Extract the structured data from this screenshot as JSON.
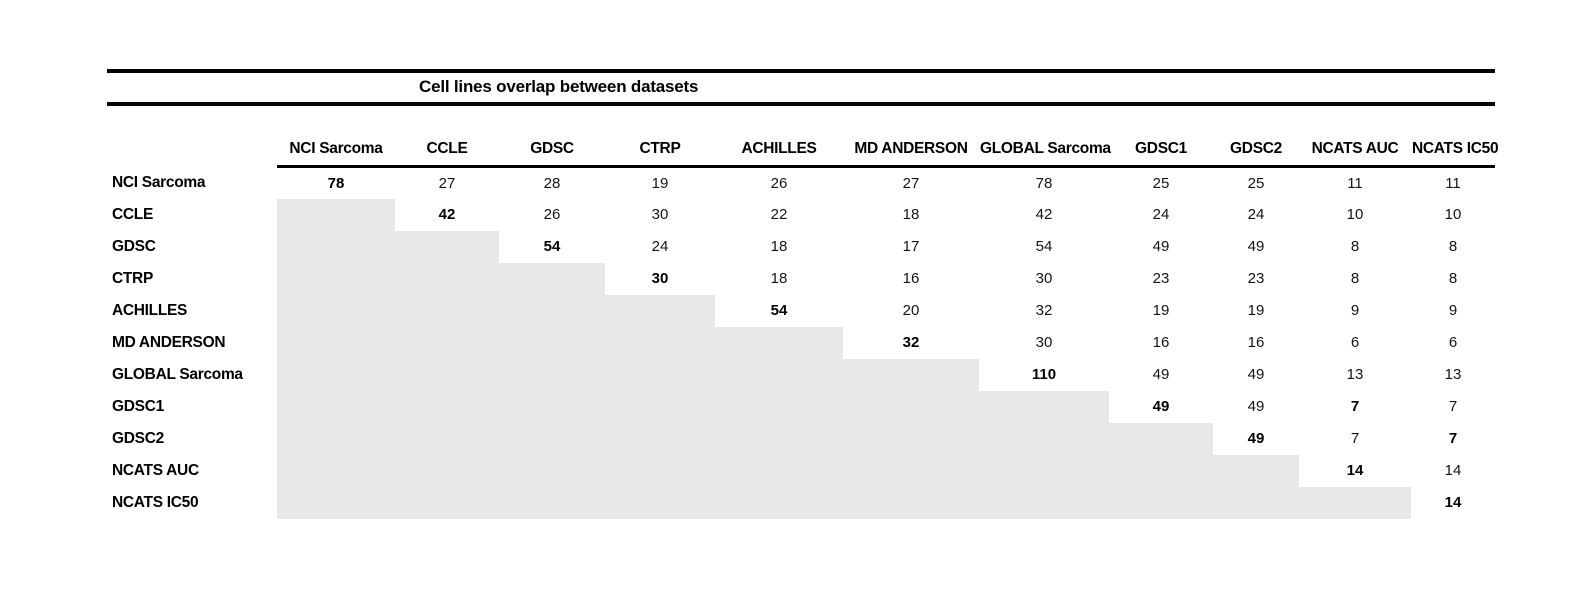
{
  "title": "Cell lines overlap between datasets",
  "colors": {
    "shade": "#e8e8e8",
    "rule": "#000000",
    "text": "#000000"
  },
  "table": {
    "columns": [
      "NCI Sarcoma",
      "CCLE",
      "GDSC",
      "CTRP",
      "ACHILLES",
      "MD ANDERSON",
      "GLOBAL Sarcoma",
      "GDSC1",
      "GDSC2",
      "NCATS AUC",
      "NCATS IC50"
    ],
    "rows": [
      {
        "label": "NCI Sarcoma",
        "cells": [
          {
            "v": "78",
            "bold": true
          },
          {
            "v": "27"
          },
          {
            "v": "28"
          },
          {
            "v": "19"
          },
          {
            "v": "26"
          },
          {
            "v": "27"
          },
          {
            "v": "78"
          },
          {
            "v": "25"
          },
          {
            "v": "25"
          },
          {
            "v": "11"
          },
          {
            "v": "11"
          }
        ]
      },
      {
        "label": "CCLE",
        "cells": [
          {
            "shaded": true
          },
          {
            "v": "42",
            "bold": true
          },
          {
            "v": "26"
          },
          {
            "v": "30"
          },
          {
            "v": "22"
          },
          {
            "v": "18"
          },
          {
            "v": "42"
          },
          {
            "v": "24"
          },
          {
            "v": "24"
          },
          {
            "v": "10"
          },
          {
            "v": "10"
          }
        ]
      },
      {
        "label": "GDSC",
        "cells": [
          {
            "shaded": true
          },
          {
            "shaded": true
          },
          {
            "v": "54",
            "bold": true
          },
          {
            "v": "24"
          },
          {
            "v": "18"
          },
          {
            "v": "17"
          },
          {
            "v": "54"
          },
          {
            "v": "49"
          },
          {
            "v": "49"
          },
          {
            "v": "8"
          },
          {
            "v": "8"
          }
        ]
      },
      {
        "label": "CTRP",
        "cells": [
          {
            "shaded": true
          },
          {
            "shaded": true
          },
          {
            "shaded": true
          },
          {
            "v": "30",
            "bold": true
          },
          {
            "v": "18"
          },
          {
            "v": "16"
          },
          {
            "v": "30"
          },
          {
            "v": "23"
          },
          {
            "v": "23"
          },
          {
            "v": "8"
          },
          {
            "v": "8"
          }
        ]
      },
      {
        "label": "ACHILLES",
        "cells": [
          {
            "shaded": true
          },
          {
            "shaded": true
          },
          {
            "shaded": true
          },
          {
            "shaded": true
          },
          {
            "v": "54",
            "bold": true
          },
          {
            "v": "20"
          },
          {
            "v": "32"
          },
          {
            "v": "19"
          },
          {
            "v": "19"
          },
          {
            "v": "9"
          },
          {
            "v": "9"
          }
        ]
      },
      {
        "label": "MD ANDERSON",
        "cells": [
          {
            "shaded": true
          },
          {
            "shaded": true
          },
          {
            "shaded": true
          },
          {
            "shaded": true
          },
          {
            "shaded": true
          },
          {
            "v": "32",
            "bold": true
          },
          {
            "v": "30"
          },
          {
            "v": "16"
          },
          {
            "v": "16"
          },
          {
            "v": "6"
          },
          {
            "v": "6"
          }
        ]
      },
      {
        "label": "GLOBAL Sarcoma",
        "cells": [
          {
            "shaded": true
          },
          {
            "shaded": true
          },
          {
            "shaded": true
          },
          {
            "shaded": true
          },
          {
            "shaded": true
          },
          {
            "shaded": true
          },
          {
            "v": "110",
            "bold": true
          },
          {
            "v": "49"
          },
          {
            "v": "49"
          },
          {
            "v": "13"
          },
          {
            "v": "13"
          }
        ]
      },
      {
        "label": "GDSC1",
        "cells": [
          {
            "shaded": true
          },
          {
            "shaded": true
          },
          {
            "shaded": true
          },
          {
            "shaded": true
          },
          {
            "shaded": true
          },
          {
            "shaded": true
          },
          {
            "shaded": true
          },
          {
            "v": "49",
            "bold": true
          },
          {
            "v": "49"
          },
          {
            "v": "7",
            "bold": true
          },
          {
            "v": "7"
          }
        ]
      },
      {
        "label": "GDSC2",
        "cells": [
          {
            "shaded": true
          },
          {
            "shaded": true
          },
          {
            "shaded": true
          },
          {
            "shaded": true
          },
          {
            "shaded": true
          },
          {
            "shaded": true
          },
          {
            "shaded": true
          },
          {
            "shaded": true
          },
          {
            "v": "49",
            "bold": true
          },
          {
            "v": "7"
          },
          {
            "v": "7",
            "bold": true
          }
        ]
      },
      {
        "label": "NCATS AUC",
        "cells": [
          {
            "shaded": true
          },
          {
            "shaded": true
          },
          {
            "shaded": true
          },
          {
            "shaded": true
          },
          {
            "shaded": true
          },
          {
            "shaded": true
          },
          {
            "shaded": true
          },
          {
            "shaded": true
          },
          {
            "shaded": true
          },
          {
            "v": "14",
            "bold": true
          },
          {
            "v": "14"
          }
        ]
      },
      {
        "label": "NCATS IC50",
        "cells": [
          {
            "shaded": true
          },
          {
            "shaded": true
          },
          {
            "shaded": true
          },
          {
            "shaded": true
          },
          {
            "shaded": true
          },
          {
            "shaded": true
          },
          {
            "shaded": true
          },
          {
            "shaded": true
          },
          {
            "shaded": true
          },
          {
            "shaded": true
          },
          {
            "v": "14",
            "bold": true
          }
        ]
      }
    ]
  }
}
